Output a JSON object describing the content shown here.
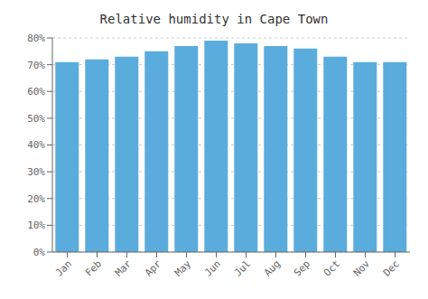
{
  "chart_data": {
    "type": "bar",
    "title": "Relative humidity in Cape Town",
    "categories": [
      "Jan",
      "Feb",
      "Mar",
      "Apr",
      "May",
      "Jun",
      "Jul",
      "Aug",
      "Sep",
      "Oct",
      "Nov",
      "Dec"
    ],
    "values": [
      71,
      72,
      73,
      75,
      77,
      79,
      78,
      77,
      76,
      73,
      71,
      71
    ],
    "color": "#5aacdc",
    "ylim": [
      0,
      80
    ],
    "yticks": [
      {
        "value": 0,
        "label": "0%"
      },
      {
        "value": 10,
        "label": "10%"
      },
      {
        "value": 20,
        "label": "20%"
      },
      {
        "value": 30,
        "label": "30%"
      },
      {
        "value": 40,
        "label": "40%"
      },
      {
        "value": 50,
        "label": "50%"
      },
      {
        "value": 60,
        "label": "60%"
      },
      {
        "value": 70,
        "label": "70%"
      },
      {
        "value": 80,
        "label": "80%"
      }
    ],
    "grid": true
  }
}
